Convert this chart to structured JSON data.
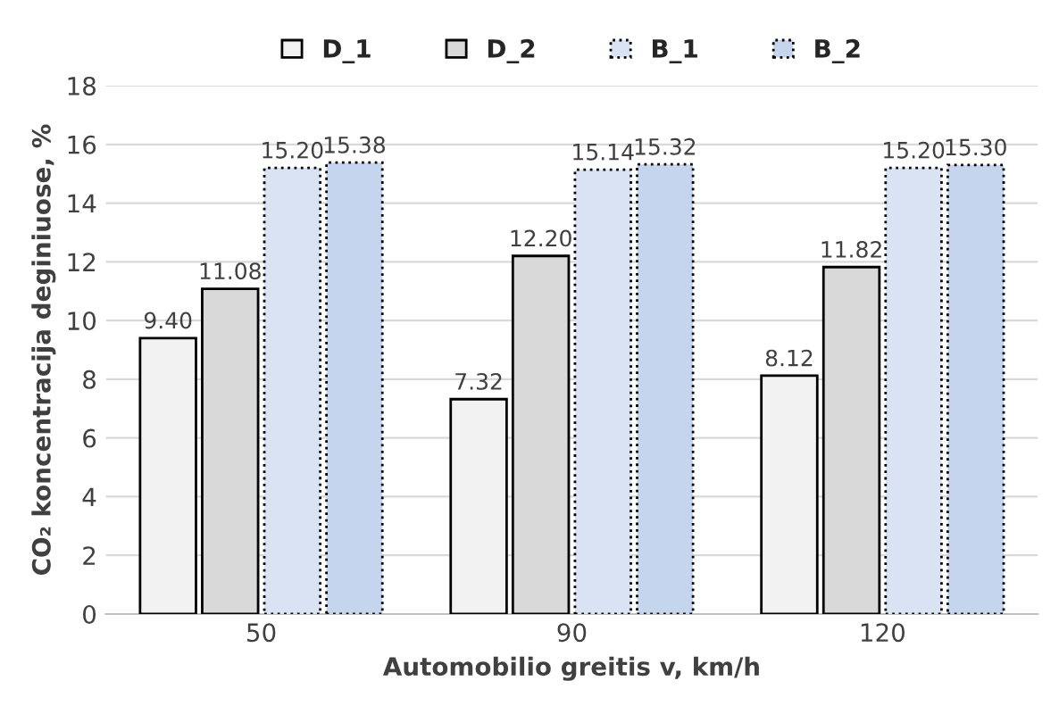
{
  "chart_data": {
    "type": "bar",
    "xlabel": "Automobilio greitis v, km/h",
    "ylabel": "CO₂ koncentracija deginiuose, %",
    "categories": [
      "50",
      "90",
      "120"
    ],
    "series": [
      {
        "name": "D_1",
        "color": "#f2f2f2",
        "line_style": "solid",
        "values": [
          9.4,
          7.32,
          8.12
        ],
        "value_labels": [
          "9.40",
          "7.32",
          "8.12"
        ]
      },
      {
        "name": "D_2",
        "color": "#d9d9d9",
        "line_style": "solid",
        "values": [
          11.08,
          12.2,
          11.82
        ],
        "value_labels": [
          "11.08",
          "12.20",
          "11.82"
        ]
      },
      {
        "name": "B_1",
        "color": "#dae3f3",
        "line_style": "dotted",
        "values": [
          15.2,
          15.14,
          15.2
        ],
        "value_labels": [
          "15.20",
          "15.14",
          "15.20"
        ]
      },
      {
        "name": "B_2",
        "color": "#c5d5ee",
        "line_style": "dotted",
        "values": [
          15.38,
          15.32,
          15.3
        ],
        "value_labels": [
          "15.38",
          "15.32",
          "15.30"
        ]
      }
    ],
    "ylim": [
      0,
      18
    ],
    "yticks": [
      0,
      2,
      4,
      6,
      8,
      10,
      12,
      14,
      16,
      18
    ],
    "grid": "y",
    "legend": "top"
  }
}
